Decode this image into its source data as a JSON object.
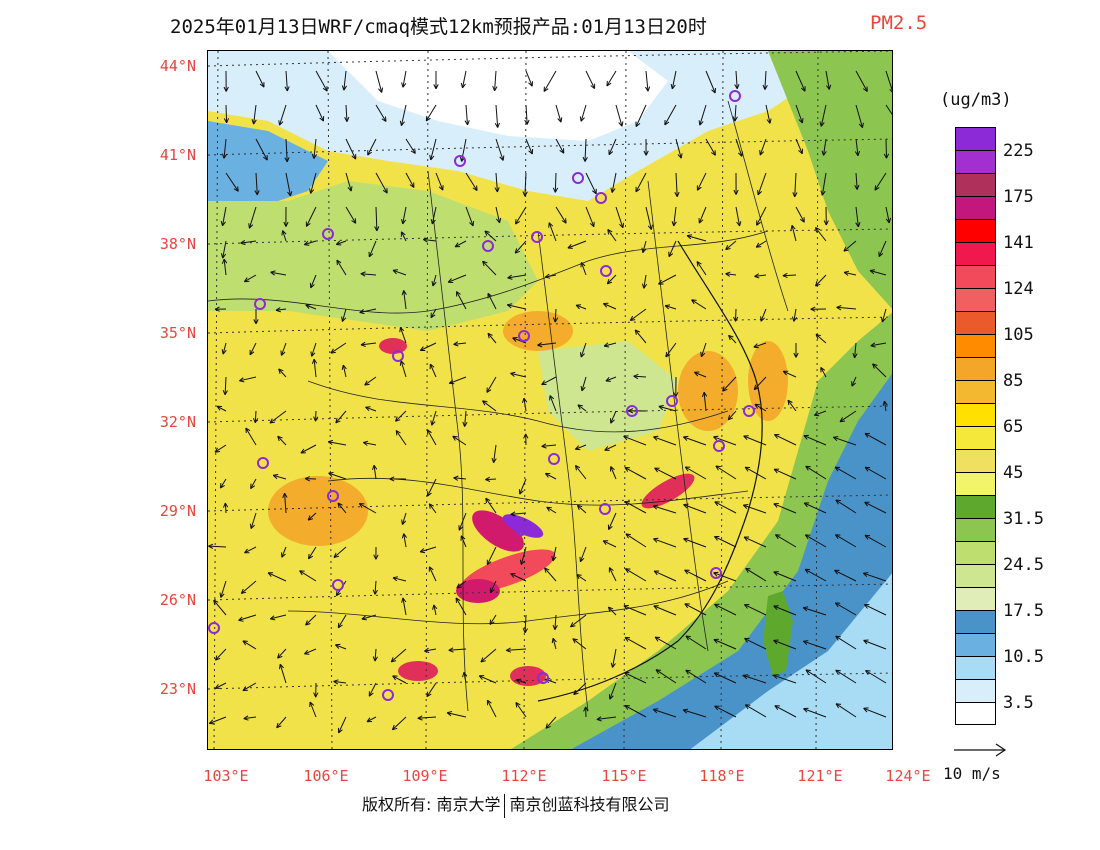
{
  "title": {
    "main": "2025年01月13日WRF/cmaq模式12km预报产品:01月13日20时",
    "variable": "PM2.5"
  },
  "map": {
    "lat_ticks": [
      "44°N",
      "41°N",
      "38°N",
      "35°N",
      "32°N",
      "29°N",
      "26°N",
      "23°N"
    ],
    "lon_ticks": [
      "103°E",
      "106°E",
      "109°E",
      "112°E",
      "115°E",
      "118°E",
      "121°E",
      "124°E"
    ],
    "colors": {
      "ocean": "#4a93c9",
      "ocean_light": "#d8eefa",
      "land_base": "#f2e24a",
      "north_clean": "#ffffff",
      "green_zone": "#8dc25a",
      "high_pollution": "#d11a6b",
      "extreme": "#8c2ad8",
      "city_marker": "#8c2ad8"
    }
  },
  "colorbar": {
    "unit": "(ug/m3)",
    "colors": [
      "#8c2ad8",
      "#a42fd0",
      "#b0305c",
      "#c4177d",
      "#ff0000",
      "#f0184c",
      "#f24a5a",
      "#f06060",
      "#ea5a2a",
      "#ff8c00",
      "#f4a62a",
      "#f4b830",
      "#ffe000",
      "#f5e83a",
      "#f0e060",
      "#f2f46a",
      "#5ea82e",
      "#8cc650",
      "#bede70",
      "#cee690",
      "#e0edb8",
      "#4a93c9",
      "#6ab0e0",
      "#a8dcf5",
      "#d8eefa",
      "#ffffff"
    ],
    "labels": [
      "225",
      "175",
      "141",
      "124",
      "105",
      "85",
      "65",
      "45",
      "31.5",
      "24.5",
      "17.5",
      "10.5",
      "3.5"
    ]
  },
  "wind_reference": {
    "label": "10 m/s"
  },
  "footer": {
    "copyright": "版权所有: 南京大学",
    "partner": "南京创蓝科技有限公司"
  }
}
